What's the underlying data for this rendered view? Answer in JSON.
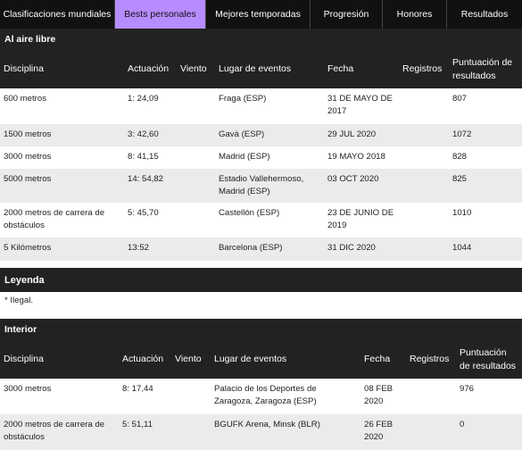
{
  "tabs": [
    {
      "label": "Clasificaciones mundiales",
      "active": false
    },
    {
      "label": "Bests personales",
      "active": true
    },
    {
      "label": "Mejores temporadas",
      "active": false
    },
    {
      "label": "Progresión",
      "active": false
    },
    {
      "label": "Honores",
      "active": false
    },
    {
      "label": "Resultados",
      "active": false
    }
  ],
  "outdoor": {
    "title": "Al aire libre",
    "columns": [
      "Disciplina",
      "Actuación",
      "Viento",
      "Lugar de eventos",
      "Fecha",
      "Registros",
      "Puntuación de resultados"
    ],
    "rows": [
      {
        "discipline": "600 metros",
        "performance": "1: 24,09",
        "wind": "",
        "venue": "Fraga (ESP)",
        "date": "31 DE MAYO DE 2017",
        "records": "",
        "score": "807"
      },
      {
        "discipline": "1500 metros",
        "performance": "3: 42,60",
        "wind": "",
        "venue": "Gavà (ESP)",
        "date": "29 JUL 2020",
        "records": "",
        "score": "1072"
      },
      {
        "discipline": "3000 metros",
        "performance": "8: 41,15",
        "wind": "",
        "venue": "Madrid (ESP)",
        "date": "19 MAYO 2018",
        "records": "",
        "score": "828"
      },
      {
        "discipline": "5000 metros",
        "performance": "14: 54,82",
        "wind": "",
        "venue": "Estadio Vallehermoso, Madrid (ESP)",
        "date": "03 OCT 2020",
        "records": "",
        "score": "825"
      },
      {
        "discipline": "2000 metros de carrera de obstáculos",
        "performance": "5: 45,70",
        "wind": "",
        "venue": "Castellón (ESP)",
        "date": "23 DE JUNIO DE 2019",
        "records": "",
        "score": "1010"
      },
      {
        "discipline": "5 Kilómetros",
        "performance": "13:52",
        "wind": "",
        "venue": "Barcelona (ESP)",
        "date": "31 DIC 2020",
        "records": "",
        "score": "1044"
      }
    ]
  },
  "legend": {
    "title": "Leyenda",
    "text": "* Ilegal."
  },
  "indoor": {
    "title": "Interior",
    "columns": [
      "Disciplina",
      "Actuación",
      "Viento",
      "Lugar de eventos",
      "Fecha",
      "Registros",
      "Puntuación de resultados"
    ],
    "rows": [
      {
        "discipline": "3000 metros",
        "performance": "8: 17,44",
        "wind": "",
        "venue": "Palacio de los Deportes de Zaragoza, Zaragoza (ESP)",
        "date": "08 FEB 2020",
        "records": "",
        "score": "976"
      },
      {
        "discipline": "2000 metros de carrera de obstáculos",
        "performance": "5: 51,11",
        "wind": "",
        "venue": "BGUFK Arena, Minsk (BLR)",
        "date": "26 FEB 2020",
        "records": "",
        "score": "0"
      }
    ]
  }
}
